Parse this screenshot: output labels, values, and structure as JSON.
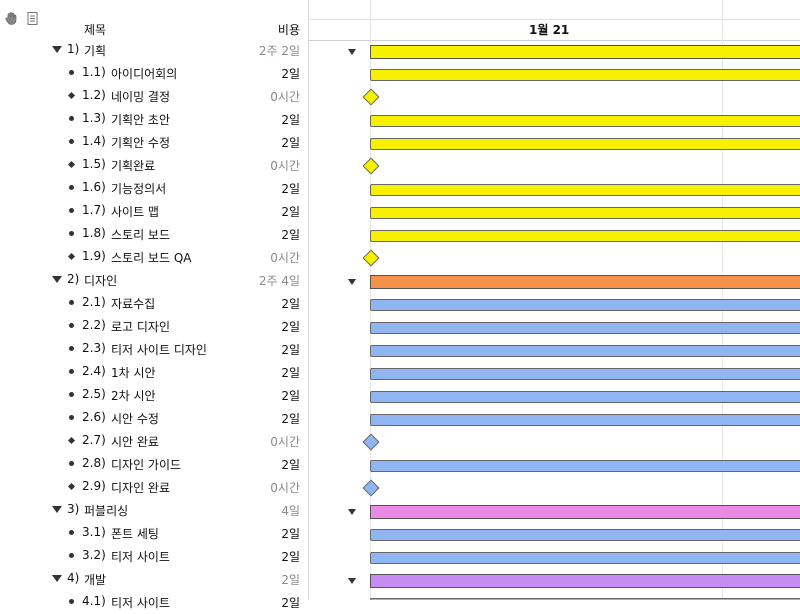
{
  "header": {
    "title_col": "제목",
    "cost_col": "비용",
    "date_label": "1월 21"
  },
  "toolbar": {
    "hand_icon": "hand-icon",
    "doc_icon": "document-icon"
  },
  "colors": {
    "planning": "#f7f100",
    "design_group": "#f6914a",
    "design_task": "#8fb6f0",
    "publishing_group": "#e98be6",
    "dev_group": "#c68cf4"
  },
  "rows": [
    {
      "num": "1)",
      "title": "기획",
      "cost": "2주 2일",
      "type": "group",
      "color": "planning"
    },
    {
      "num": "1.1)",
      "title": "아이디어회의",
      "cost": "2일",
      "type": "task",
      "color": "planning"
    },
    {
      "num": "1.2)",
      "title": "네이밍 결정",
      "cost": "0시간",
      "type": "milestone",
      "color": "planning"
    },
    {
      "num": "1.3)",
      "title": "기획안 초안",
      "cost": "2일",
      "type": "task",
      "color": "planning"
    },
    {
      "num": "1.4)",
      "title": "기획안 수정",
      "cost": "2일",
      "type": "task",
      "color": "planning"
    },
    {
      "num": "1.5)",
      "title": "기획완료",
      "cost": "0시간",
      "type": "milestone",
      "color": "planning"
    },
    {
      "num": "1.6)",
      "title": "기능정의서",
      "cost": "2일",
      "type": "task",
      "color": "planning"
    },
    {
      "num": "1.7)",
      "title": "사이트 맵",
      "cost": "2일",
      "type": "task",
      "color": "planning"
    },
    {
      "num": "1.8)",
      "title": "스토리 보드",
      "cost": "2일",
      "type": "task",
      "color": "planning"
    },
    {
      "num": "1.9)",
      "title": "스토리 보드 QA",
      "cost": "0시간",
      "type": "milestone",
      "color": "planning"
    },
    {
      "num": "2)",
      "title": "디자인",
      "cost": "2주 4일",
      "type": "group",
      "color": "design_group"
    },
    {
      "num": "2.1)",
      "title": "자료수집",
      "cost": "2일",
      "type": "task",
      "color": "design_task"
    },
    {
      "num": "2.2)",
      "title": "로고 디자인",
      "cost": "2일",
      "type": "task",
      "color": "design_task"
    },
    {
      "num": "2.3)",
      "title": "티저 사이트 디자인",
      "cost": "2일",
      "type": "task",
      "color": "design_task"
    },
    {
      "num": "2.4)",
      "title": "1차 시안",
      "cost": "2일",
      "type": "task",
      "color": "design_task"
    },
    {
      "num": "2.5)",
      "title": "2차 시안",
      "cost": "2일",
      "type": "task",
      "color": "design_task"
    },
    {
      "num": "2.6)",
      "title": "시안 수정",
      "cost": "2일",
      "type": "task",
      "color": "design_task"
    },
    {
      "num": "2.7)",
      "title": "시안 완료",
      "cost": "0시간",
      "type": "milestone",
      "color": "design_task"
    },
    {
      "num": "2.8)",
      "title": "디자인 가이드",
      "cost": "2일",
      "type": "task",
      "color": "design_task"
    },
    {
      "num": "2.9)",
      "title": "디자인 완료",
      "cost": "0시간",
      "type": "milestone",
      "color": "design_task"
    },
    {
      "num": "3)",
      "title": "퍼블리싱",
      "cost": "4일",
      "type": "group",
      "color": "publishing_group"
    },
    {
      "num": "3.1)",
      "title": "폰트 세팅",
      "cost": "2일",
      "type": "task",
      "color": "design_task"
    },
    {
      "num": "3.2)",
      "title": "티저 사이트",
      "cost": "2일",
      "type": "task",
      "color": "design_task"
    },
    {
      "num": "4)",
      "title": "개발",
      "cost": "2일",
      "type": "group",
      "color": "dev_group"
    },
    {
      "num": "4.1)",
      "title": "티저 사이트",
      "cost": "2일",
      "type": "task",
      "color": "design_task"
    }
  ]
}
